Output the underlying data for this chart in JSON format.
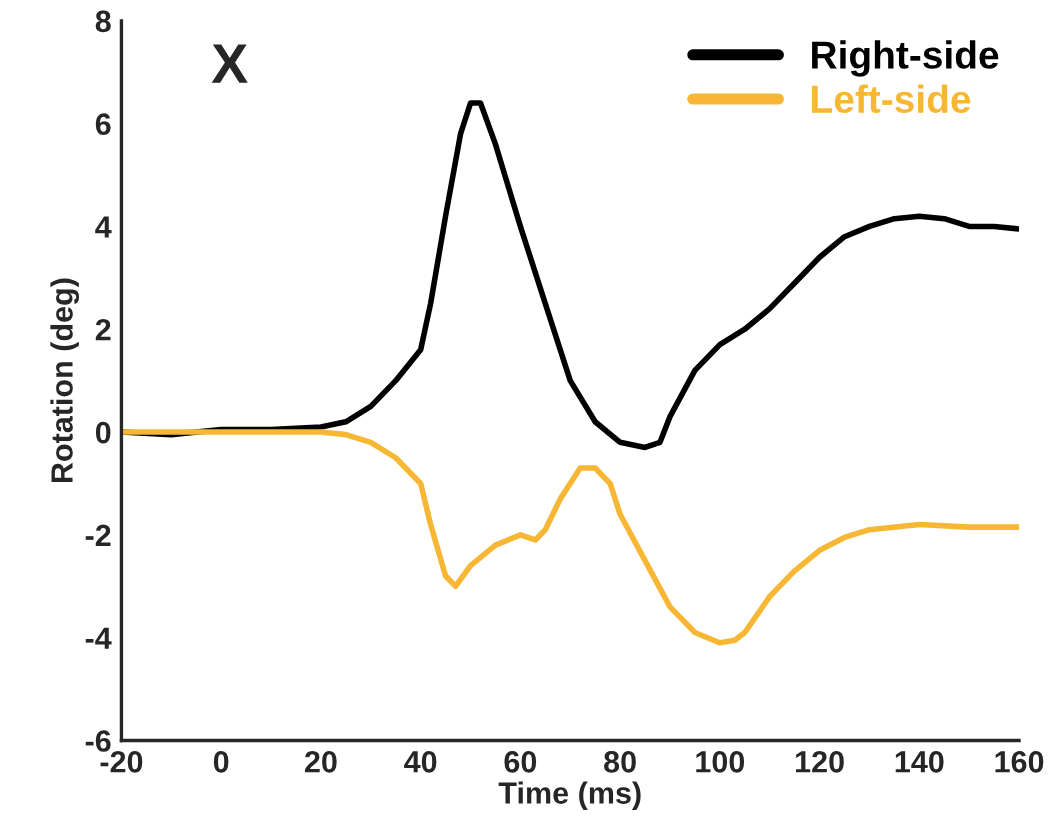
{
  "chart_data": {
    "type": "line",
    "xlabel": "Time (ms)",
    "ylabel": "Rotation (deg)",
    "annotations": [
      "X"
    ],
    "xlim": [
      -20,
      160
    ],
    "xticks": [
      -20,
      0,
      20,
      40,
      60,
      80,
      100,
      120,
      140,
      160
    ],
    "ylim": [
      -6,
      8
    ],
    "yticks": [
      -6,
      -4,
      -2,
      0,
      2,
      4,
      6,
      8
    ],
    "grid": false,
    "legend": "top right",
    "series": [
      {
        "name": "Right-side",
        "color": "#000000",
        "x": [
          -20,
          -10,
          0,
          10,
          20,
          25,
          30,
          35,
          40,
          42,
          45,
          48,
          50,
          52,
          55,
          60,
          65,
          70,
          75,
          80,
          85,
          88,
          90,
          95,
          100,
          105,
          110,
          115,
          120,
          125,
          130,
          135,
          140,
          145,
          150,
          155,
          160
        ],
        "values": [
          0,
          -0.05,
          0.05,
          0.05,
          0.1,
          0.2,
          0.5,
          1.0,
          1.6,
          2.5,
          4.2,
          5.8,
          6.4,
          6.4,
          5.6,
          4.0,
          2.5,
          1.0,
          0.2,
          -0.2,
          -0.3,
          -0.2,
          0.3,
          1.2,
          1.7,
          2.0,
          2.4,
          2.9,
          3.4,
          3.8,
          4.0,
          4.15,
          4.2,
          4.15,
          4.0,
          4.0,
          3.95
        ]
      },
      {
        "name": "Left-side",
        "color": "#f7b735",
        "x": [
          -20,
          0,
          20,
          25,
          30,
          35,
          40,
          42,
          45,
          47,
          50,
          55,
          60,
          63,
          65,
          68,
          72,
          75,
          78,
          80,
          85,
          90,
          95,
          100,
          103,
          105,
          110,
          115,
          120,
          125,
          130,
          140,
          150,
          160
        ],
        "values": [
          0,
          0,
          0,
          -0.05,
          -0.2,
          -0.5,
          -1.0,
          -1.8,
          -2.8,
          -3.0,
          -2.6,
          -2.2,
          -2.0,
          -2.1,
          -1.9,
          -1.3,
          -0.7,
          -0.7,
          -1.0,
          -1.6,
          -2.5,
          -3.4,
          -3.9,
          -4.1,
          -4.05,
          -3.9,
          -3.2,
          -2.7,
          -2.3,
          -2.05,
          -1.9,
          -1.8,
          -1.85,
          -1.85
        ]
      }
    ]
  }
}
